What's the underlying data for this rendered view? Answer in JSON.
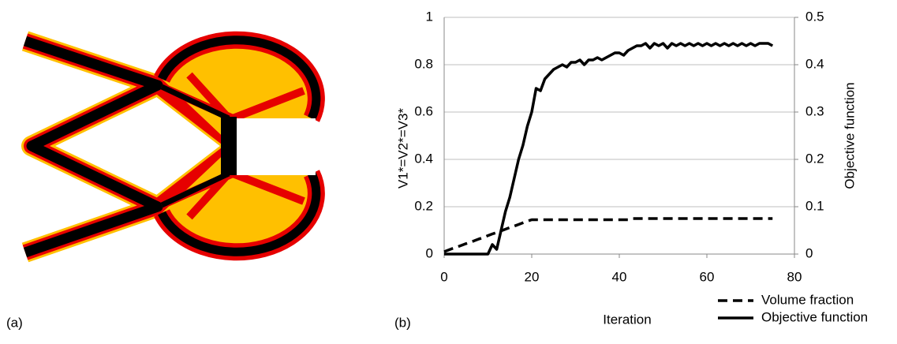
{
  "panel_labels": [
    "(a)",
    "(b)"
  ],
  "chart_data": {
    "type": "line",
    "xlabel": "Iteration",
    "ylabel": "V1*=V2*=V3*",
    "y2label": "Objective function",
    "x": [
      0,
      1,
      2,
      3,
      4,
      5,
      6,
      7,
      8,
      9,
      10,
      11,
      12,
      13,
      14,
      15,
      16,
      17,
      18,
      19,
      20,
      21,
      22,
      23,
      24,
      25,
      26,
      27,
      28,
      29,
      30,
      31,
      32,
      33,
      34,
      35,
      36,
      37,
      38,
      39,
      40,
      41,
      42,
      43,
      44,
      45,
      46,
      47,
      48,
      49,
      50,
      51,
      52,
      53,
      54,
      55,
      56,
      57,
      58,
      59,
      60,
      61,
      62,
      63,
      64,
      65,
      66,
      67,
      68,
      69,
      70,
      71,
      72,
      73,
      74,
      75
    ],
    "series": [
      {
        "name": "Volume fraction",
        "color": "#000000",
        "dash": "dashed",
        "values": [
          0.01,
          0.017,
          0.024,
          0.03,
          0.037,
          0.044,
          0.05,
          0.057,
          0.064,
          0.07,
          0.078,
          0.085,
          0.091,
          0.098,
          0.105,
          0.112,
          0.118,
          0.125,
          0.132,
          0.139,
          0.145,
          0.145,
          0.145,
          0.145,
          0.145,
          0.145,
          0.145,
          0.145,
          0.145,
          0.145,
          0.145,
          0.145,
          0.145,
          0.145,
          0.145,
          0.145,
          0.145,
          0.145,
          0.145,
          0.145,
          0.145,
          0.145,
          0.145,
          0.15,
          0.15,
          0.15,
          0.15,
          0.15,
          0.15,
          0.15,
          0.15,
          0.15,
          0.15,
          0.15,
          0.15,
          0.15,
          0.15,
          0.15,
          0.15,
          0.15,
          0.15,
          0.15,
          0.15,
          0.15,
          0.15,
          0.15,
          0.15,
          0.15,
          0.15,
          0.15,
          0.15,
          0.15,
          0.15,
          0.15,
          0.15,
          0.15
        ]
      },
      {
        "name": "Objective function",
        "color": "#000000",
        "dash": "solid",
        "axis": "y2",
        "values": [
          0,
          0,
          0,
          0,
          0,
          0,
          0,
          0,
          0,
          0,
          0,
          0.02,
          0.01,
          0.05,
          0.09,
          0.12,
          0.16,
          0.2,
          0.23,
          0.27,
          0.3,
          0.35,
          0.345,
          0.37,
          0.38,
          0.39,
          0.395,
          0.4,
          0.395,
          0.405,
          0.405,
          0.41,
          0.4,
          0.41,
          0.41,
          0.415,
          0.41,
          0.415,
          0.42,
          0.425,
          0.425,
          0.42,
          0.43,
          0.435,
          0.44,
          0.44,
          0.445,
          0.435,
          0.445,
          0.44,
          0.445,
          0.435,
          0.445,
          0.44,
          0.445,
          0.44,
          0.445,
          0.44,
          0.445,
          0.44,
          0.445,
          0.44,
          0.445,
          0.44,
          0.445,
          0.44,
          0.445,
          0.44,
          0.445,
          0.44,
          0.445,
          0.44,
          0.445,
          0.445,
          0.445,
          0.44
        ]
      }
    ],
    "xlim": [
      0,
      80
    ],
    "xticks": [
      0,
      20,
      40,
      60,
      80
    ],
    "ylim": [
      0,
      1
    ],
    "yticks": [
      0,
      0.2,
      0.4,
      0.6,
      0.8,
      1
    ],
    "y2lim": [
      0,
      0.5
    ],
    "y2ticks": [
      0,
      0.1,
      0.2,
      0.3,
      0.4,
      0.5
    ],
    "grid": true
  }
}
